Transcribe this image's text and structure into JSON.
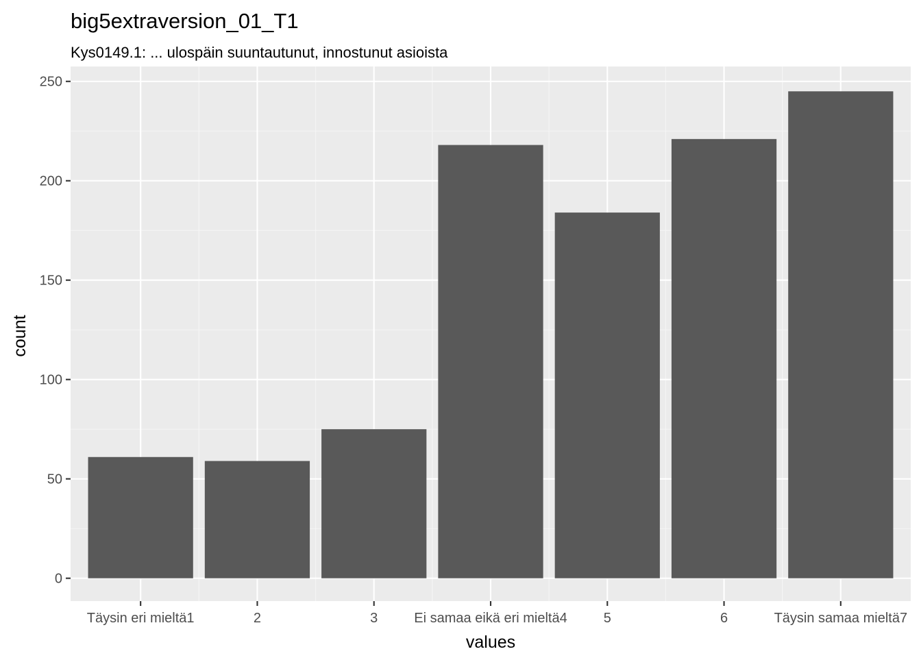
{
  "chart_data": {
    "type": "bar",
    "title": "big5extraversion_01_T1",
    "subtitle": "Kys0149.1: ... ulospäin suuntautunut, innostunut asioista",
    "xlabel": "values",
    "ylabel": "count",
    "categories": [
      "Täysin eri mieltä1",
      "2",
      "3",
      "Ei samaa eikä eri mieltä4",
      "5",
      "6",
      "Täysin samaa mieltä7"
    ],
    "values": [
      61,
      59,
      75,
      218,
      184,
      221,
      245
    ],
    "ylim": [
      -11.5,
      257.5
    ],
    "y_ticks": [
      0,
      50,
      100,
      150,
      200,
      250
    ],
    "y_tick_labels": [
      "0",
      "50",
      "100",
      "150",
      "200",
      "250"
    ],
    "grid": true,
    "legend": "none",
    "colors": {
      "bar": "#595959",
      "panel_background": "#ebebeb",
      "grid_major": "#ffffff",
      "grid_minor": "#f5f5f5",
      "tick_text": "#4d4d4d",
      "tick_mark": "#333333"
    }
  }
}
